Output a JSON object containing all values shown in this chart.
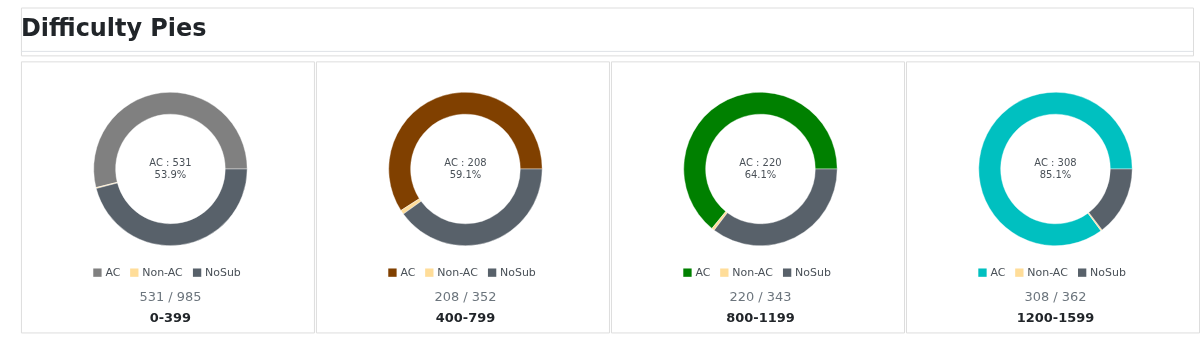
{
  "chart_data": [
    {
      "type": "donut",
      "title": "0-399",
      "subtitle": "531 / 985",
      "annotations": [
        "Difficulty Pies",
        "AC : 531",
        "53.9%"
      ],
      "categories": [
        "AC",
        "Non-AC",
        "NoSub"
      ],
      "values": [
        53.9,
        0.2,
        45.9
      ],
      "colors": [
        "#808080",
        "#ffdd99",
        "#58616a"
      ],
      "legend": "bottom"
    },
    {
      "type": "donut",
      "title": "400-799",
      "subtitle": "208 / 352",
      "annotations": [
        "AC : 208",
        "59.1%"
      ],
      "categories": [
        "AC",
        "Non-AC",
        "NoSub"
      ],
      "values": [
        59.1,
        0.9,
        40.0
      ],
      "colors": [
        "#804000",
        "#ffdd99",
        "#58616a"
      ],
      "legend": "bottom"
    },
    {
      "type": "donut",
      "title": "800-1199",
      "subtitle": "220 / 343",
      "annotations": [
        "AC : 220",
        "64.1%"
      ],
      "categories": [
        "AC",
        "Non-AC",
        "NoSub"
      ],
      "values": [
        64.1,
        0.6,
        35.3
      ],
      "colors": [
        "#008000",
        "#ffdd99",
        "#58616a"
      ],
      "legend": "bottom"
    },
    {
      "type": "donut",
      "title": "1200-1599",
      "subtitle": "308 / 362",
      "annotations": [
        "AC : 308",
        "85.1%"
      ],
      "categories": [
        "AC",
        "Non-AC",
        "NoSub"
      ],
      "values": [
        85.1,
        0.3,
        14.6
      ],
      "colors": [
        "#00c0c0",
        "#ffdd99",
        "#58616a"
      ],
      "legend": "bottom"
    }
  ]
}
